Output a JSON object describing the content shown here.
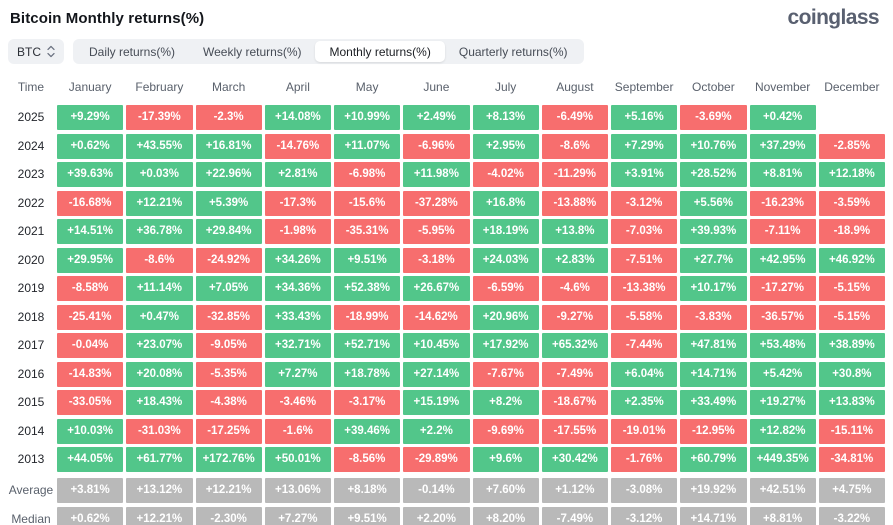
{
  "page": {
    "title": "Bitcoin Monthly returns(%)",
    "logo": "coinglass"
  },
  "toolbar": {
    "symbol_select": "BTC",
    "tabs": [
      {
        "label": "Daily returns(%)",
        "active": false
      },
      {
        "label": "Weekly returns(%)",
        "active": false
      },
      {
        "label": "Monthly returns(%)",
        "active": true
      },
      {
        "label": "Quarterly returns(%)",
        "active": false
      }
    ]
  },
  "colors": {
    "positive": "#52c68a",
    "negative": "#f76e6e",
    "summary": "#b9b9b9"
  },
  "chart_data": {
    "type": "heatmap",
    "title": "Bitcoin Monthly returns(%)",
    "columns": [
      "Time",
      "January",
      "February",
      "March",
      "April",
      "May",
      "June",
      "July",
      "August",
      "September",
      "October",
      "November",
      "December"
    ],
    "rows": [
      {
        "label": "2025",
        "kind": "year",
        "values": [
          "+9.29%",
          "-17.39%",
          "-2.3%",
          "+14.08%",
          "+10.99%",
          "+2.49%",
          "+8.13%",
          "-6.49%",
          "+5.16%",
          "-3.69%",
          "+0.42%",
          ""
        ]
      },
      {
        "label": "2024",
        "kind": "year",
        "values": [
          "+0.62%",
          "+43.55%",
          "+16.81%",
          "-14.76%",
          "+11.07%",
          "-6.96%",
          "+2.95%",
          "-8.6%",
          "+7.29%",
          "+10.76%",
          "+37.29%",
          "-2.85%"
        ]
      },
      {
        "label": "2023",
        "kind": "year",
        "values": [
          "+39.63%",
          "+0.03%",
          "+22.96%",
          "+2.81%",
          "-6.98%",
          "+11.98%",
          "-4.02%",
          "-11.29%",
          "+3.91%",
          "+28.52%",
          "+8.81%",
          "+12.18%"
        ]
      },
      {
        "label": "2022",
        "kind": "year",
        "values": [
          "-16.68%",
          "+12.21%",
          "+5.39%",
          "-17.3%",
          "-15.6%",
          "-37.28%",
          "+16.8%",
          "-13.88%",
          "-3.12%",
          "+5.56%",
          "-16.23%",
          "-3.59%"
        ]
      },
      {
        "label": "2021",
        "kind": "year",
        "values": [
          "+14.51%",
          "+36.78%",
          "+29.84%",
          "-1.98%",
          "-35.31%",
          "-5.95%",
          "+18.19%",
          "+13.8%",
          "-7.03%",
          "+39.93%",
          "-7.11%",
          "-18.9%"
        ]
      },
      {
        "label": "2020",
        "kind": "year",
        "values": [
          "+29.95%",
          "-8.6%",
          "-24.92%",
          "+34.26%",
          "+9.51%",
          "-3.18%",
          "+24.03%",
          "+2.83%",
          "-7.51%",
          "+27.7%",
          "+42.95%",
          "+46.92%"
        ]
      },
      {
        "label": "2019",
        "kind": "year",
        "values": [
          "-8.58%",
          "+11.14%",
          "+7.05%",
          "+34.36%",
          "+52.38%",
          "+26.67%",
          "-6.59%",
          "-4.6%",
          "-13.38%",
          "+10.17%",
          "-17.27%",
          "-5.15%"
        ]
      },
      {
        "label": "2018",
        "kind": "year",
        "values": [
          "-25.41%",
          "+0.47%",
          "-32.85%",
          "+33.43%",
          "-18.99%",
          "-14.62%",
          "+20.96%",
          "-9.27%",
          "-5.58%",
          "-3.83%",
          "-36.57%",
          "-5.15%"
        ]
      },
      {
        "label": "2017",
        "kind": "year",
        "values": [
          "-0.04%",
          "+23.07%",
          "-9.05%",
          "+32.71%",
          "+52.71%",
          "+10.45%",
          "+17.92%",
          "+65.32%",
          "-7.44%",
          "+47.81%",
          "+53.48%",
          "+38.89%"
        ]
      },
      {
        "label": "2016",
        "kind": "year",
        "values": [
          "-14.83%",
          "+20.08%",
          "-5.35%",
          "+7.27%",
          "+18.78%",
          "+27.14%",
          "-7.67%",
          "-7.49%",
          "+6.04%",
          "+14.71%",
          "+5.42%",
          "+30.8%"
        ]
      },
      {
        "label": "2015",
        "kind": "year",
        "values": [
          "-33.05%",
          "+18.43%",
          "-4.38%",
          "-3.46%",
          "-3.17%",
          "+15.19%",
          "+8.2%",
          "-18.67%",
          "+2.35%",
          "+33.49%",
          "+19.27%",
          "+13.83%"
        ]
      },
      {
        "label": "2014",
        "kind": "year",
        "values": [
          "+10.03%",
          "-31.03%",
          "-17.25%",
          "-1.6%",
          "+39.46%",
          "+2.2%",
          "-9.69%",
          "-17.55%",
          "-19.01%",
          "-12.95%",
          "+12.82%",
          "-15.11%"
        ]
      },
      {
        "label": "2013",
        "kind": "year",
        "values": [
          "+44.05%",
          "+61.77%",
          "+172.76%",
          "+50.01%",
          "-8.56%",
          "-29.89%",
          "+9.6%",
          "+30.42%",
          "-1.76%",
          "+60.79%",
          "+449.35%",
          "-34.81%"
        ]
      },
      {
        "label": "Average",
        "kind": "summary",
        "values": [
          "+3.81%",
          "+13.12%",
          "+12.21%",
          "+13.06%",
          "+8.18%",
          "-0.14%",
          "+7.60%",
          "+1.12%",
          "-3.08%",
          "+19.92%",
          "+42.51%",
          "+4.75%"
        ]
      },
      {
        "label": "Median",
        "kind": "summary",
        "values": [
          "+0.62%",
          "+12.21%",
          "-2.30%",
          "+7.27%",
          "+9.51%",
          "+2.20%",
          "+8.20%",
          "-7.49%",
          "-3.12%",
          "+14.71%",
          "+8.81%",
          "-3.22%"
        ]
      }
    ]
  }
}
